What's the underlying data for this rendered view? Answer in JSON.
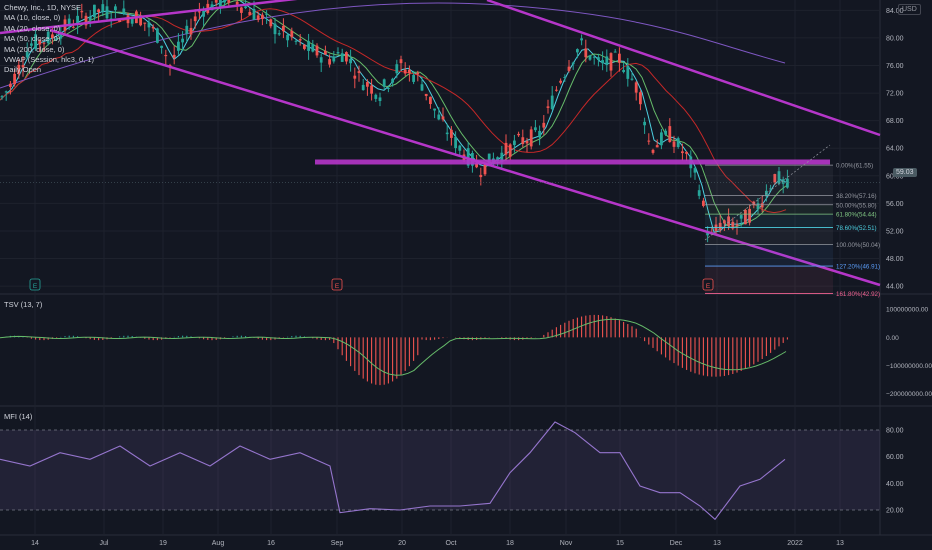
{
  "chart_data": {
    "type": "candlestick",
    "symbol": "Chewy, Inc., 1D, NYSE",
    "currency": "USD",
    "indicators_legend": [
      "MA (10, close, 0)",
      "MA (20, close, 0)",
      "MA (50, close, 0)",
      "MA (200, close, 0)",
      "VWAP (Session, hlc3, 0, 1)",
      "Daily Open"
    ],
    "price_axis": {
      "ticks": [
        "84.00",
        "80.00",
        "76.00",
        "72.00",
        "68.00",
        "64.00",
        "60.00",
        "56.00",
        "52.00",
        "48.00",
        "44.00"
      ],
      "range": [
        43.0,
        85.5
      ]
    },
    "time_axis": {
      "ticks": [
        "14",
        "Jul",
        "19",
        "Aug",
        "16",
        "Sep",
        "20",
        "Oct",
        "18",
        "Nov",
        "15",
        "Dec",
        "13",
        "2022",
        "13"
      ]
    },
    "last_price": "59.03",
    "fibonacci": [
      {
        "label": "0.00%(61.55)",
        "price": 61.55,
        "color": "#9598a1"
      },
      {
        "label": "38.20%(57.16)",
        "price": 57.16,
        "color": "#9598a1"
      },
      {
        "label": "50.00%(55.80)",
        "price": 55.8,
        "color": "#9598a1"
      },
      {
        "label": "61.80%(54.44)",
        "price": 54.44,
        "color": "#81c784"
      },
      {
        "label": "78.60%(52.51)",
        "price": 52.51,
        "color": "#4dd0e1"
      },
      {
        "label": "100.00%(50.04)",
        "price": 50.04,
        "color": "#9598a1"
      },
      {
        "label": "127.20%(46.91)",
        "price": 46.91,
        "color": "#5b9cf6"
      },
      {
        "label": "161.80%(42.92)",
        "price": 42.92,
        "color": "#f06292"
      }
    ],
    "tsv": {
      "title": "TSV (13, 7)",
      "ticks": [
        "100000000.00",
        "0.00",
        "−100000000.00",
        "−200000000.00"
      ]
    },
    "mfi": {
      "title": "MFI (14)",
      "ticks": [
        "80.00",
        "60.00",
        "40.00",
        "20.00"
      ],
      "upper_band": 80,
      "lower_band": 20
    },
    "colors": {
      "up": "#26a69a",
      "down": "#ef5350",
      "trendline": "#b536c9",
      "ma10": "#4dd0e1",
      "ma20": "#66bb6a",
      "ma50": "#c62828",
      "ma200": "#7e57c2",
      "mfi": "#9575cd"
    }
  }
}
